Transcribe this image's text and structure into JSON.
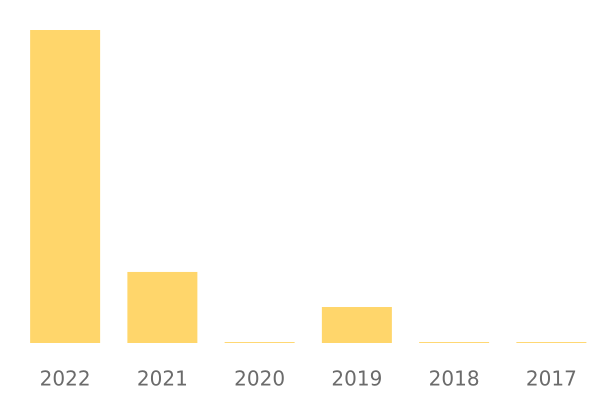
{
  "chart_data": {
    "type": "bar",
    "categories": [
      "2022",
      "2021",
      "2020",
      "2019",
      "2018",
      "2017"
    ],
    "values": [
      100,
      22.7,
      0.3,
      11.5,
      0.3,
      0.3
    ],
    "color": "#ffd66b",
    "ylim": [
      0,
      100
    ]
  }
}
